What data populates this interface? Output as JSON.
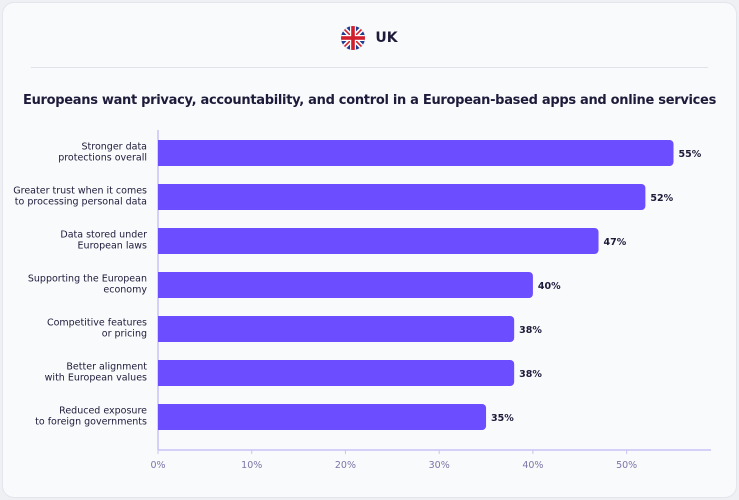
{
  "header": {
    "flag_icon": "uk-flag-icon",
    "country": "UK"
  },
  "chart_data": {
    "type": "bar",
    "orientation": "horizontal",
    "title": "Europeans want privacy, accountability, and control in a European-based apps and online services",
    "categories": [
      [
        "Stronger data",
        "protections overall"
      ],
      [
        "Greater trust when it comes",
        "to processing personal data"
      ],
      [
        "Data stored under",
        "European laws"
      ],
      [
        "Supporting the European",
        "economy"
      ],
      [
        "Competitive features",
        "or pricing"
      ],
      [
        "Better alignment",
        "with European values"
      ],
      [
        "Reduced exposure",
        "to foreign governments"
      ]
    ],
    "values": [
      55,
      52,
      47,
      40,
      38,
      38,
      35
    ],
    "data_labels": [
      "55%",
      "52%",
      "47%",
      "40%",
      "38%",
      "38%",
      "35%"
    ],
    "xticks": [
      "0%",
      "10%",
      "20%",
      "30%",
      "40%",
      "50%"
    ],
    "xtick_values": [
      0,
      10,
      20,
      30,
      40,
      50
    ],
    "xlim": [
      0,
      59
    ],
    "grid": false,
    "bar_color": "#6c4dff",
    "axis_color": "#c9c2f5"
  }
}
